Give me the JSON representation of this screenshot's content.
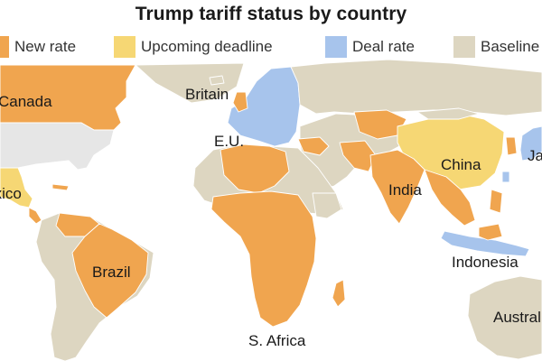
{
  "title": "Trump tariff status by country",
  "legend": [
    {
      "label": "New rate",
      "color": "#f0a54f"
    },
    {
      "label": "Upcoming deadline",
      "color": "#f6d774"
    },
    {
      "label": "Deal rate",
      "color": "#a7c4ec"
    },
    {
      "label": "Baseline",
      "color": "#ddd6c1"
    }
  ],
  "colors": {
    "new_rate": "#f0a54f",
    "upcoming_deadline": "#f6d774",
    "deal_rate": "#a7c4ec",
    "baseline": "#ddd6c1",
    "no_data": "#e6e6e6",
    "borders": "#ffffff"
  },
  "labels": {
    "canada": "Canada",
    "britain": "Britain",
    "eu": "E.U.",
    "mexico": "Mexico",
    "china": "China",
    "japan": "Japan",
    "india": "India",
    "brazil": "Brazil",
    "indonesia": "Indonesia",
    "south_africa": "S. Africa",
    "australia": "Australia"
  }
}
